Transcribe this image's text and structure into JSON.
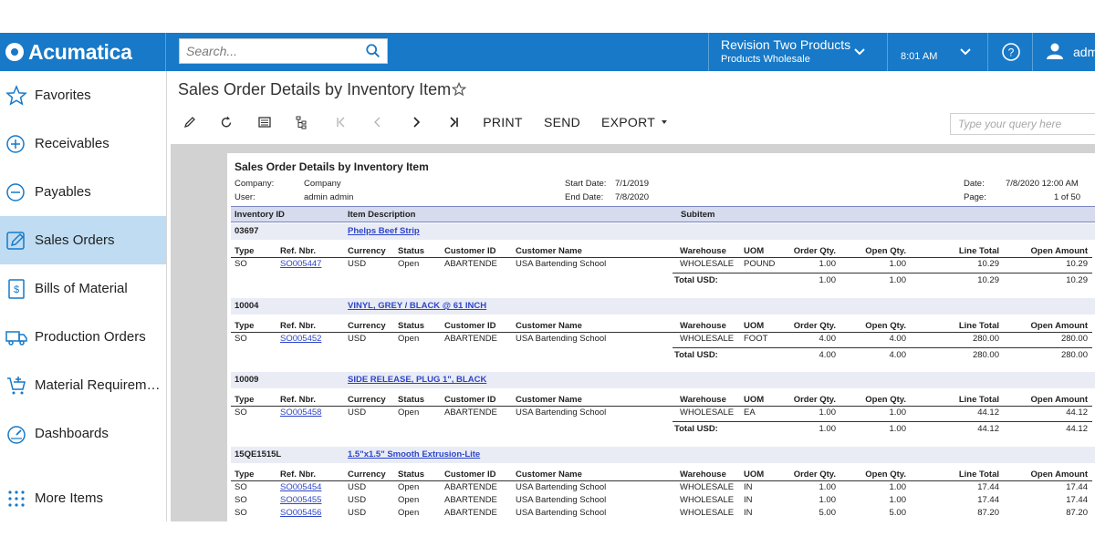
{
  "app": {
    "name": "Acumatica"
  },
  "search": {
    "placeholder": "Search..."
  },
  "tenant": {
    "name": "Revision Two Products",
    "sub": "Products Wholesale"
  },
  "clock": "8:01 AM",
  "user": "adm",
  "sidebar": {
    "items": [
      {
        "label": "Favorites",
        "icon": "star-icon"
      },
      {
        "label": "Receivables",
        "icon": "plus-circle-icon"
      },
      {
        "label": "Payables",
        "icon": "minus-circle-icon"
      },
      {
        "label": "Sales Orders",
        "icon": "pencil-icon",
        "active": true
      },
      {
        "label": "Bills of Material",
        "icon": "document-dollar-icon"
      },
      {
        "label": "Production Orders",
        "icon": "truck-icon"
      },
      {
        "label": "Material Requirem…",
        "icon": "cart-plus-icon"
      },
      {
        "label": "Dashboards",
        "icon": "gauge-icon"
      },
      {
        "label": "More Items",
        "icon": "grid-dots-icon"
      }
    ]
  },
  "page": {
    "title": "Sales Order Details by Inventory Item"
  },
  "toolbar": {
    "print": "PRINT",
    "send": "SEND",
    "export": "EXPORT",
    "query_placeholder": "Type your query here"
  },
  "report": {
    "title": "Sales Order Details by Inventory Item",
    "company_label": "Company:",
    "company": "Company",
    "user_label": "User:",
    "user": "admin admin",
    "start_label": "Start Date:",
    "start": "7/1/2019",
    "end_label": "End Date:",
    "end": "7/8/2020",
    "date_label": "Date:",
    "date": "7/8/2020 12:00 AM",
    "page_label": "Page:",
    "page": "1 of 50",
    "head": {
      "inv": "Inventory ID",
      "desc": "Item Description",
      "sub": "Subitem"
    },
    "cols": {
      "type": "Type",
      "ref": "Ref. Nbr.",
      "cur": "Currency",
      "status": "Status",
      "cust_id": "Customer ID",
      "cust_name": "Customer Name",
      "wh": "Warehouse",
      "uom": "UOM",
      "oqty": "Order Qty.",
      "openqty": "Open Qty.",
      "line": "Line Total",
      "openamt": "Open Amount"
    },
    "total_label": "Total USD:",
    "groups": [
      {
        "id": "03697",
        "desc": "Phelps Beef Strip",
        "rows": [
          {
            "type": "SO",
            "ref": "SO005447",
            "cur": "USD",
            "status": "Open",
            "cust_id": "ABARTENDE",
            "cust_name": "USA Bartending School",
            "wh": "WHOLESALE",
            "uom": "POUND",
            "oqty": "1.00",
            "openqty": "1.00",
            "line": "10.29",
            "openamt": "10.29"
          }
        ],
        "total": {
          "oqty": "1.00",
          "openqty": "1.00",
          "line": "10.29",
          "openamt": "10.29"
        }
      },
      {
        "id": "10004",
        "desc": "VINYL, GREY / BLACK @ 61 INCH",
        "rows": [
          {
            "type": "SO",
            "ref": "SO005452",
            "cur": "USD",
            "status": "Open",
            "cust_id": "ABARTENDE",
            "cust_name": "USA Bartending School",
            "wh": "WHOLESALE",
            "uom": "FOOT",
            "oqty": "4.00",
            "openqty": "4.00",
            "line": "280.00",
            "openamt": "280.00"
          }
        ],
        "total": {
          "oqty": "4.00",
          "openqty": "4.00",
          "line": "280.00",
          "openamt": "280.00"
        }
      },
      {
        "id": "10009",
        "desc": "SIDE RELEASE, PLUG 1\", BLACK",
        "rows": [
          {
            "type": "SO",
            "ref": "SO005458",
            "cur": "USD",
            "status": "Open",
            "cust_id": "ABARTENDE",
            "cust_name": "USA Bartending School",
            "wh": "WHOLESALE",
            "uom": "EA",
            "oqty": "1.00",
            "openqty": "1.00",
            "line": "44.12",
            "openamt": "44.12"
          }
        ],
        "total": {
          "oqty": "1.00",
          "openqty": "1.00",
          "line": "44.12",
          "openamt": "44.12"
        }
      },
      {
        "id": "15QE1515L",
        "desc": "1.5\"x1.5\" Smooth Extrusion-Lite",
        "rows": [
          {
            "type": "SO",
            "ref": "SO005454",
            "cur": "USD",
            "status": "Open",
            "cust_id": "ABARTENDE",
            "cust_name": "USA Bartending School",
            "wh": "WHOLESALE",
            "uom": "IN",
            "oqty": "1.00",
            "openqty": "1.00",
            "line": "17.44",
            "openamt": "17.44"
          },
          {
            "type": "SO",
            "ref": "SO005455",
            "cur": "USD",
            "status": "Open",
            "cust_id": "ABARTENDE",
            "cust_name": "USA Bartending School",
            "wh": "WHOLESALE",
            "uom": "IN",
            "oqty": "1.00",
            "openqty": "1.00",
            "line": "17.44",
            "openamt": "17.44"
          },
          {
            "type": "SO",
            "ref": "SO005456",
            "cur": "USD",
            "status": "Open",
            "cust_id": "ABARTENDE",
            "cust_name": "USA Bartending School",
            "wh": "WHOLESALE",
            "uom": "IN",
            "oqty": "5.00",
            "openqty": "5.00",
            "line": "87.20",
            "openamt": "87.20"
          }
        ]
      }
    ]
  }
}
